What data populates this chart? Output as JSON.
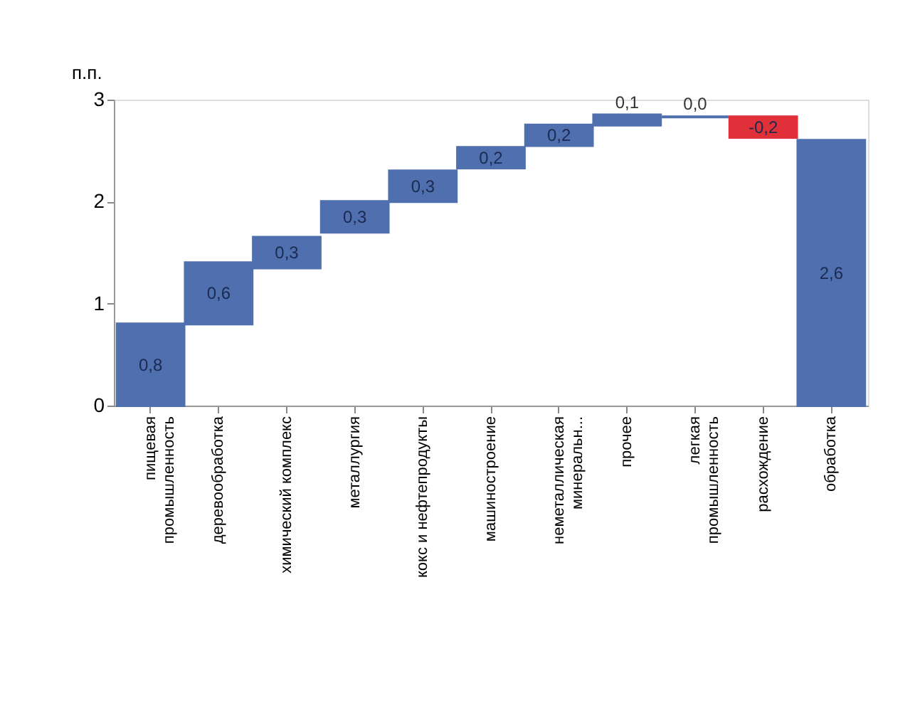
{
  "chart_data": {
    "type": "bar",
    "ylabel": "п.п.",
    "categories": [
      "пищевая\nпромышленность",
      "деревообработка",
      "химический комплекс",
      "металлургия",
      "кокс и нефтепродукты",
      "машиностроение",
      "неметаллическая\nминеральн...",
      "прочее",
      "легкая\nпромышленность",
      "расхождение",
      "обработка"
    ],
    "values": [
      0.8,
      0.6,
      0.3,
      0.3,
      0.3,
      0.2,
      0.2,
      0.1,
      0.0,
      -0.2,
      2.6
    ],
    "base": [
      0,
      0.8,
      1.35,
      1.7,
      2.0,
      2.33,
      2.55,
      2.75,
      2.83,
      2.83,
      0
    ],
    "colors": [
      "#4f6fae",
      "#4f6fae",
      "#4f6fae",
      "#4f6fae",
      "#4f6fae",
      "#4f6fae",
      "#4f6fae",
      "#4f6fae",
      "#4f6fae",
      "#e0303a",
      "#4f6fae"
    ],
    "value_labels": [
      "0,8",
      "0,6",
      "0,3",
      "0,3",
      "0,3",
      "0,2",
      "0,2",
      "0,1",
      "0,0",
      "-0,2",
      "2,6"
    ],
    "ylim": [
      0,
      3
    ],
    "yticks": [
      0,
      1,
      2,
      3
    ],
    "grid": false
  }
}
